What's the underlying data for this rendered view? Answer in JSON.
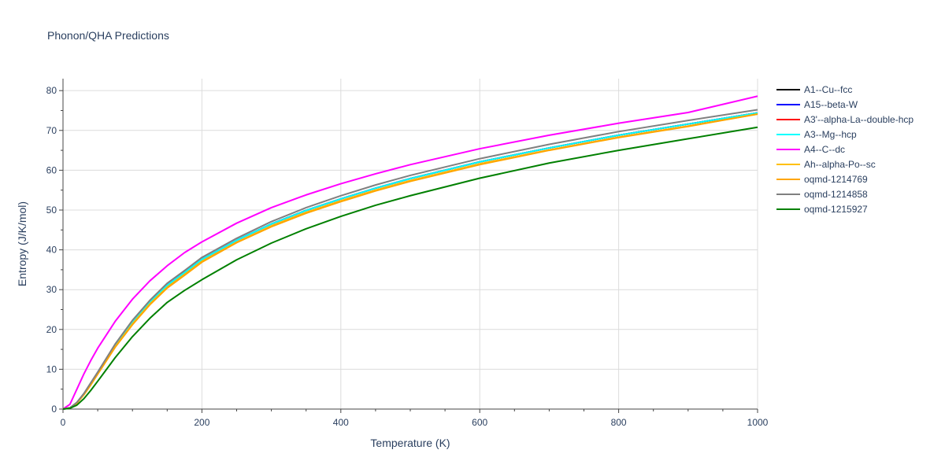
{
  "chart_data": {
    "type": "line",
    "title": "Phonon/QHA Predictions",
    "xlabel": "Temperature (K)",
    "ylabel": "Entropy (J/K/mol)",
    "xlim": [
      0,
      1000
    ],
    "ylim": [
      0,
      83
    ],
    "xticks": [
      0,
      200,
      400,
      600,
      800,
      1000
    ],
    "yticks": [
      0,
      10,
      20,
      30,
      40,
      50,
      60,
      70,
      80
    ],
    "grid": true,
    "legend_position": "right",
    "x": [
      0,
      10,
      20,
      30,
      40,
      50,
      75,
      100,
      125,
      150,
      175,
      200,
      250,
      300,
      350,
      400,
      450,
      500,
      600,
      700,
      800,
      900,
      1000
    ],
    "series": [
      {
        "name": "A1--Cu--fcc",
        "color": "#000000",
        "values": [
          0,
          0.3,
          1.6,
          3.8,
          6.4,
          9.1,
          16.0,
          21.9,
          26.9,
          31.1,
          34.3,
          37.6,
          42.4,
          46.5,
          49.9,
          52.8,
          55.5,
          57.9,
          62.1,
          65.6,
          68.8,
          71.6,
          74.4
        ]
      },
      {
        "name": "A15--beta-W",
        "color": "#0000ff",
        "values": [
          0,
          0.3,
          1.6,
          3.8,
          6.4,
          9.1,
          16.0,
          21.9,
          26.9,
          31.1,
          34.3,
          37.6,
          42.4,
          46.5,
          49.9,
          52.8,
          55.5,
          57.9,
          62.1,
          65.6,
          68.8,
          71.6,
          74.4
        ]
      },
      {
        "name": "A3'--alpha-La--double-hcp",
        "color": "#ff0000",
        "values": [
          0,
          0.3,
          1.6,
          3.8,
          6.4,
          9.1,
          16.0,
          21.9,
          26.9,
          31.1,
          34.3,
          37.6,
          42.4,
          46.5,
          49.9,
          52.8,
          55.5,
          57.9,
          62.1,
          65.6,
          68.8,
          71.6,
          74.4
        ]
      },
      {
        "name": "A3--Mg--hcp",
        "color": "#00ffff",
        "values": [
          0,
          0.3,
          1.6,
          3.8,
          6.4,
          9.1,
          16.0,
          21.9,
          26.9,
          31.1,
          34.3,
          37.6,
          42.4,
          46.5,
          49.9,
          52.8,
          55.5,
          57.9,
          62.1,
          65.6,
          68.8,
          71.6,
          74.4
        ]
      },
      {
        "name": "A4--C--dc",
        "color": "#ff00ff",
        "values": [
          0,
          1.2,
          5.0,
          8.8,
          12.2,
          15.3,
          22.0,
          27.6,
          32.2,
          36.0,
          39.3,
          42.0,
          46.7,
          50.6,
          53.8,
          56.6,
          59.1,
          61.4,
          65.4,
          68.8,
          71.8,
          74.5,
          78.6
        ]
      },
      {
        "name": "Ah--alpha-Po--sc",
        "color": "#ffc000",
        "values": [
          0,
          0.3,
          1.5,
          3.6,
          6.1,
          8.8,
          15.6,
          21.4,
          26.4,
          30.6,
          33.8,
          37.1,
          41.9,
          46.0,
          49.4,
          52.3,
          55.0,
          57.4,
          61.6,
          65.1,
          68.3,
          71.1,
          74.1
        ]
      },
      {
        "name": "oqmd-1214769",
        "color": "#ffa500",
        "values": [
          0,
          0.3,
          1.5,
          3.6,
          6.1,
          8.8,
          15.5,
          21.2,
          26.2,
          30.4,
          33.6,
          36.9,
          41.8,
          45.8,
          49.2,
          52.1,
          54.8,
          57.2,
          61.4,
          65.0,
          68.2,
          71.0,
          74.1
        ]
      },
      {
        "name": "oqmd-1214858",
        "color": "#808080",
        "values": [
          0,
          0.3,
          1.7,
          3.9,
          6.6,
          9.3,
          16.3,
          22.3,
          27.3,
          31.6,
          34.8,
          38.1,
          42.9,
          47.1,
          50.6,
          53.6,
          56.3,
          58.7,
          62.9,
          66.5,
          69.7,
          72.5,
          75.2
        ]
      },
      {
        "name": "oqmd-1215927",
        "color": "#008000",
        "values": [
          0,
          0.2,
          1.0,
          2.6,
          4.7,
          7.0,
          12.9,
          18.2,
          22.8,
          26.8,
          29.8,
          32.5,
          37.5,
          41.7,
          45.3,
          48.4,
          51.2,
          53.6,
          58.0,
          61.8,
          65.0,
          67.9,
          70.8
        ]
      }
    ]
  }
}
